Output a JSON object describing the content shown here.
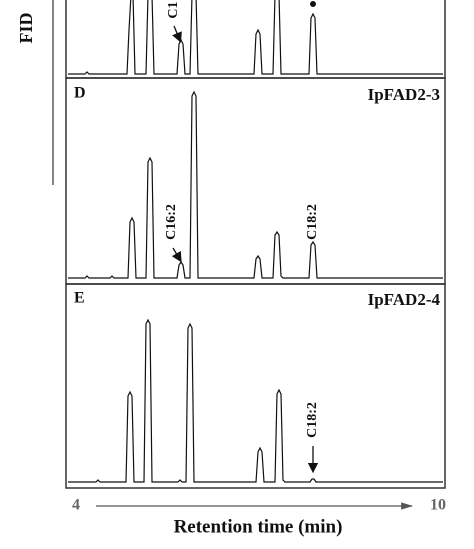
{
  "y_axis_label": "FID",
  "x_axis": {
    "label": "Retention time (min)",
    "start": "4",
    "end": "10"
  },
  "panels": [
    {
      "annotations": [
        "C1"
      ]
    },
    {
      "letter": "D",
      "name": "IpFAD2-3",
      "annotations": [
        "C16:2",
        "C18:2"
      ]
    },
    {
      "letter": "E",
      "name": "IpFAD2-4",
      "annotations": [
        "C18:2"
      ]
    }
  ]
}
